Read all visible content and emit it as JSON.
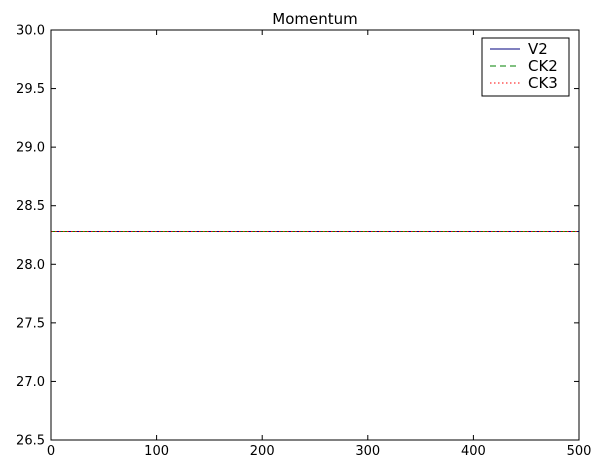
{
  "chart_data": {
    "type": "line",
    "title": "Momentum",
    "xlabel": "",
    "ylabel": "",
    "xlim": [
      0,
      500
    ],
    "ylim": [
      26.5,
      30.0
    ],
    "xticks": [
      0,
      100,
      200,
      300,
      400,
      500
    ],
    "xtick_labels": [
      "0",
      "100",
      "200",
      "300",
      "400",
      "500"
    ],
    "yticks": [
      26.5,
      27.0,
      27.5,
      28.0,
      28.5,
      29.0,
      29.5,
      30.0
    ],
    "ytick_labels": [
      "26.5",
      "27.0",
      "27.5",
      "28.0",
      "28.5",
      "29.0",
      "29.5",
      "30.0"
    ],
    "grid": false,
    "legend_position": "top-right",
    "series": [
      {
        "name": "V2",
        "color": "#00007f",
        "style": "solid",
        "x": [
          0,
          500
        ],
        "y": [
          28.28,
          28.28
        ]
      },
      {
        "name": "CK2",
        "color": "#008000",
        "style": "dashed",
        "x": [
          0,
          500
        ],
        "y": [
          28.28,
          28.28
        ]
      },
      {
        "name": "CK3",
        "color": "#ff0000",
        "style": "dotted",
        "x": [
          0,
          500
        ],
        "y": [
          28.28,
          28.28
        ]
      }
    ]
  }
}
